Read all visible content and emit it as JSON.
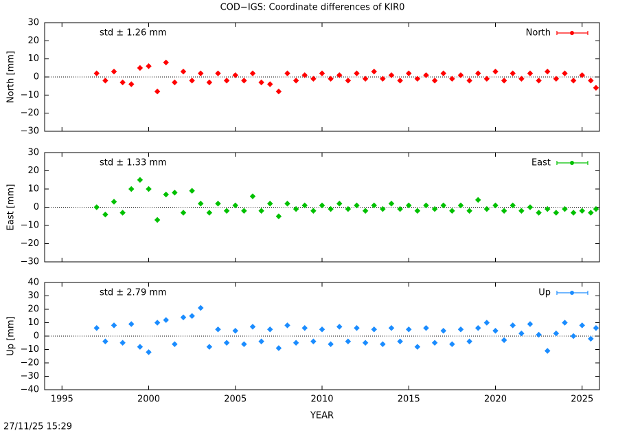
{
  "title": "COD−IGS: Coordinate differences of KIR0",
  "timestamp": "27/11/25 15:29",
  "chart_data": [
    {
      "type": "scatter",
      "ylabel": "North [mm]",
      "annotation": "std ± 1.26 mm",
      "legend": "upper right",
      "xlim": [
        1994,
        2026
      ],
      "xticks": [
        1995,
        2000,
        2005,
        2010,
        2015,
        2020,
        2025
      ],
      "ylim": [
        -30,
        30
      ],
      "yticks": [
        {
          "value": -30,
          "label": "−30"
        },
        {
          "value": -20,
          "label": "−20"
        },
        {
          "value": -10,
          "label": "−10"
        },
        0,
        10,
        20,
        30
      ],
      "x": [
        1997,
        1997.5,
        1998,
        1998.5,
        1999,
        1999.5,
        2000,
        2000.5,
        2001,
        2001.5,
        2002,
        2002.5,
        2003,
        2003.5,
        2004,
        2004.5,
        2005,
        2005.5,
        2006,
        2006.5,
        2007,
        2007.5,
        2008,
        2008.5,
        2009,
        2009.5,
        2010,
        2010.5,
        2011,
        2011.5,
        2012,
        2012.5,
        2013,
        2013.5,
        2014,
        2014.5,
        2015,
        2015.5,
        2016,
        2016.5,
        2017,
        2017.5,
        2018,
        2018.5,
        2019,
        2019.5,
        2020,
        2020.5,
        2021,
        2021.5,
        2022,
        2022.5,
        2023,
        2023.5,
        2024,
        2024.5,
        2025,
        2025.5,
        2025.8
      ],
      "series": [
        {
          "name": "North",
          "color": "#ff0000",
          "values": [
            2,
            -2,
            3,
            -3,
            -4,
            5,
            6,
            -8,
            8,
            -3,
            3,
            -2,
            2,
            -3,
            2,
            -2,
            1,
            -2,
            2,
            -3,
            -4,
            -8,
            2,
            -2,
            1,
            -1,
            2,
            -1,
            1,
            -2,
            2,
            -1,
            3,
            -1,
            1,
            -2,
            2,
            -1,
            1,
            -2,
            2,
            -1,
            1,
            -2,
            2,
            -1,
            3,
            -2,
            2,
            -1,
            2,
            -2,
            3,
            -1,
            2,
            -2,
            1,
            -2,
            -6
          ]
        }
      ]
    },
    {
      "type": "scatter",
      "ylabel": "East [mm]",
      "annotation": "std ± 1.33 mm",
      "legend": "upper right",
      "xlim": [
        1994,
        2026
      ],
      "xticks": [
        1995,
        2000,
        2005,
        2010,
        2015,
        2020,
        2025
      ],
      "ylim": [
        -30,
        30
      ],
      "yticks": [
        {
          "value": -30,
          "label": "−30"
        },
        {
          "value": -20,
          "label": "−20"
        },
        {
          "value": -10,
          "label": "−10"
        },
        0,
        10,
        20,
        30
      ],
      "x": [
        1997,
        1997.5,
        1998,
        1998.5,
        1999,
        1999.5,
        2000,
        2000.5,
        2001,
        2001.5,
        2002,
        2002.5,
        2003,
        2003.5,
        2004,
        2004.5,
        2005,
        2005.5,
        2006,
        2006.5,
        2007,
        2007.5,
        2008,
        2008.5,
        2009,
        2009.5,
        2010,
        2010.5,
        2011,
        2011.5,
        2012,
        2012.5,
        2013,
        2013.5,
        2014,
        2014.5,
        2015,
        2015.5,
        2016,
        2016.5,
        2017,
        2017.5,
        2018,
        2018.5,
        2019,
        2019.5,
        2020,
        2020.5,
        2021,
        2021.5,
        2022,
        2022.5,
        2023,
        2023.5,
        2024,
        2024.5,
        2025,
        2025.5,
        2025.8
      ],
      "series": [
        {
          "name": "East",
          "color": "#00c000",
          "values": [
            0,
            -4,
            3,
            -3,
            10,
            15,
            10,
            -7,
            7,
            8,
            -3,
            9,
            2,
            -3,
            2,
            -2,
            1,
            -2,
            6,
            -2,
            2,
            -5,
            2,
            -1,
            1,
            -2,
            1,
            -1,
            2,
            -1,
            1,
            -2,
            1,
            -1,
            2,
            -1,
            1,
            -2,
            1,
            -1,
            1,
            -2,
            1,
            -2,
            4,
            -1,
            1,
            -2,
            1,
            -2,
            0,
            -3,
            -1,
            -3,
            -1,
            -3,
            -2,
            -3,
            -1
          ]
        }
      ]
    },
    {
      "type": "scatter",
      "ylabel": "Up [mm]",
      "xlabel": "YEAR",
      "annotation": "std ± 2.79 mm",
      "legend": "upper right",
      "xlim": [
        1994,
        2026
      ],
      "xticks": [
        1995,
        2000,
        2005,
        2010,
        2015,
        2020,
        2025
      ],
      "ylim": [
        -40,
        40
      ],
      "yticks": [
        {
          "value": -40,
          "label": "−40"
        },
        {
          "value": -30,
          "label": "−30"
        },
        {
          "value": -20,
          "label": "−20"
        },
        {
          "value": -10,
          "label": "−10"
        },
        0,
        10,
        20,
        30,
        40
      ],
      "x": [
        1997,
        1997.5,
        1998,
        1998.5,
        1999,
        1999.5,
        2000,
        2000.5,
        2001,
        2001.5,
        2002,
        2002.5,
        2003,
        2003.5,
        2004,
        2004.5,
        2005,
        2005.5,
        2006,
        2006.5,
        2007,
        2007.5,
        2008,
        2008.5,
        2009,
        2009.5,
        2010,
        2010.5,
        2011,
        2011.5,
        2012,
        2012.5,
        2013,
        2013.5,
        2014,
        2014.5,
        2015,
        2015.5,
        2016,
        2016.5,
        2017,
        2017.5,
        2018,
        2018.5,
        2019,
        2019.5,
        2020,
        2020.5,
        2021,
        2021.5,
        2022,
        2022.5,
        2023,
        2023.5,
        2024,
        2024.5,
        2025,
        2025.5,
        2025.8
      ],
      "series": [
        {
          "name": "Up",
          "color": "#1a8cff",
          "values": [
            6,
            -4,
            8,
            -5,
            9,
            -8,
            -12,
            10,
            12,
            -6,
            14,
            15,
            21,
            -8,
            5,
            -5,
            4,
            -6,
            7,
            -4,
            5,
            -9,
            8,
            -5,
            6,
            -4,
            5,
            -6,
            7,
            -4,
            6,
            -5,
            5,
            -6,
            6,
            -4,
            5,
            -8,
            6,
            -5,
            4,
            -6,
            5,
            -4,
            6,
            10,
            4,
            -3,
            8,
            2,
            9,
            1,
            -11,
            2,
            10,
            0,
            8,
            -2,
            6
          ]
        }
      ]
    }
  ]
}
